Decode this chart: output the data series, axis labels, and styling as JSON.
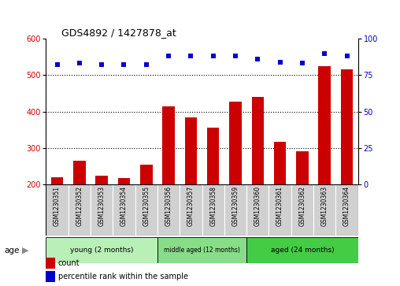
{
  "title": "GDS4892 / 1427878_at",
  "samples": [
    "GSM1230351",
    "GSM1230352",
    "GSM1230353",
    "GSM1230354",
    "GSM1230355",
    "GSM1230356",
    "GSM1230357",
    "GSM1230358",
    "GSM1230359",
    "GSM1230360",
    "GSM1230361",
    "GSM1230362",
    "GSM1230363",
    "GSM1230364"
  ],
  "counts": [
    220,
    265,
    225,
    218,
    255,
    415,
    385,
    355,
    428,
    440,
    318,
    292,
    525,
    515
  ],
  "percentiles": [
    82,
    83,
    82,
    82,
    82,
    88,
    88,
    88,
    88,
    86,
    84,
    83,
    90,
    88
  ],
  "bar_color": "#cc0000",
  "dot_color": "#0000cc",
  "ylim_left": [
    200,
    600
  ],
  "ylim_right": [
    0,
    100
  ],
  "yticks_left": [
    200,
    300,
    400,
    500,
    600
  ],
  "yticks_right": [
    0,
    25,
    50,
    75,
    100
  ],
  "groups": [
    {
      "label": "young (2 months)",
      "start": 0,
      "end": 5,
      "color": "#b8f0b8"
    },
    {
      "label": "middle aged (12 months)",
      "start": 5,
      "end": 9,
      "color": "#88dd88"
    },
    {
      "label": "aged (24 months)",
      "start": 9,
      "end": 14,
      "color": "#44cc44"
    }
  ],
  "age_label": "age",
  "legend_count": "count",
  "legend_percentile": "percentile rank within the sample",
  "background_color": "#ffffff",
  "bar_width": 0.55,
  "sample_box_color": "#d0d0d0",
  "grid_color": "black",
  "title_fontsize": 9,
  "tick_fontsize": 7,
  "label_fontsize": 5.5
}
